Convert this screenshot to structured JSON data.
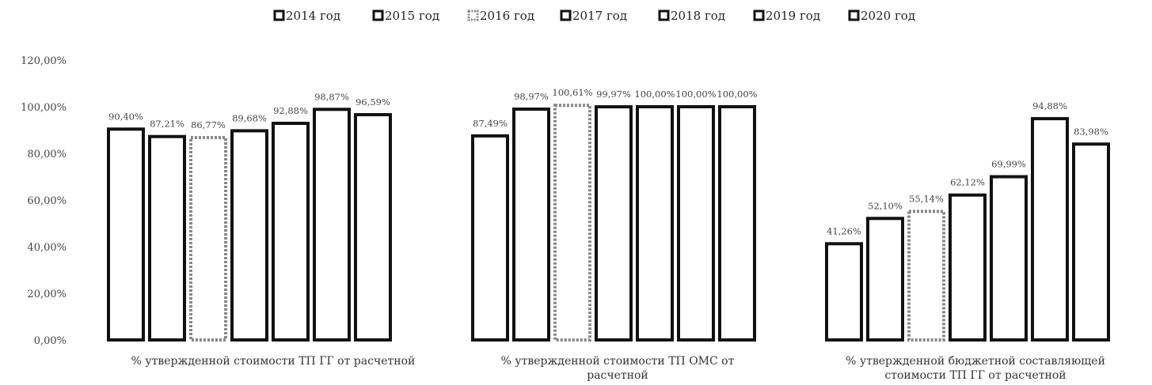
{
  "chart_data": {
    "type": "bar",
    "series": [
      {
        "name": "2014 год"
      },
      {
        "name": "2015 год"
      },
      {
        "name": "2016 год"
      },
      {
        "name": "2017 год"
      },
      {
        "name": "2018 год"
      },
      {
        "name": "2019 год"
      },
      {
        "name": "2020 год"
      }
    ],
    "categories": [
      "% утвержденной стоимости ТП ГГ от расчетной",
      "% утвержденной стоимости ТП ОМС от расчетной",
      "% утвержденной бюджетной составляющей стоимости ТП ГГ от расчетной"
    ],
    "values": [
      [
        90.4,
        87.21,
        86.77,
        89.68,
        92.88,
        98.87,
        96.59
      ],
      [
        87.49,
        98.97,
        100.61,
        99.97,
        100.0,
        100.0,
        100.0
      ],
      [
        41.26,
        52.1,
        55.14,
        62.12,
        69.99,
        94.88,
        83.98
      ]
    ],
    "data_labels": [
      [
        "90,40%",
        "87,21%",
        "86,77%",
        "89,68%",
        "92,88%",
        "98,87%",
        "96,59%"
      ],
      [
        "87,49%",
        "98,97%",
        "100,61%",
        "99,97%",
        "100,00%",
        "100,00%",
        "100,00%"
      ],
      [
        "41,26%",
        "52,10%",
        "55,14%",
        "62,12%",
        "69,99%",
        "94,88%",
        "83,98%"
      ]
    ],
    "y_ticks": [
      "0,00%",
      "20,00%",
      "40,00%",
      "60,00%",
      "80,00%",
      "100,00%",
      "120,00%"
    ],
    "ylim": [
      0,
      120
    ],
    "grid": false,
    "legend_position": "top-center"
  },
  "colors": {
    "bar_outline": "#111111",
    "bar_outline_2016": "#888888",
    "bar_fill": "#ffffff"
  }
}
